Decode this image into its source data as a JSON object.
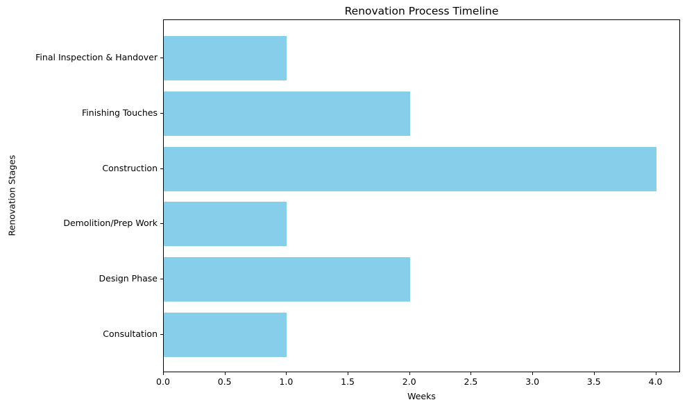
{
  "chart_data": {
    "type": "bar",
    "orientation": "horizontal",
    "title": "Renovation Process Timeline",
    "xlabel": "Weeks",
    "ylabel": "Renovation Stages",
    "categories_order": "top-to-bottom",
    "categories": [
      "Final Inspection & Handover",
      "Finishing Touches",
      "Construction",
      "Demolition/Prep Work",
      "Design Phase",
      "Consultation"
    ],
    "values": [
      1,
      2,
      4,
      1,
      2,
      1
    ],
    "xlim": [
      0,
      4.2
    ],
    "xticks": [
      0.0,
      0.5,
      1.0,
      1.5,
      2.0,
      2.5,
      3.0,
      3.5,
      4.0
    ],
    "bar_color": "#87CEEB",
    "grid": false,
    "legend": null
  }
}
